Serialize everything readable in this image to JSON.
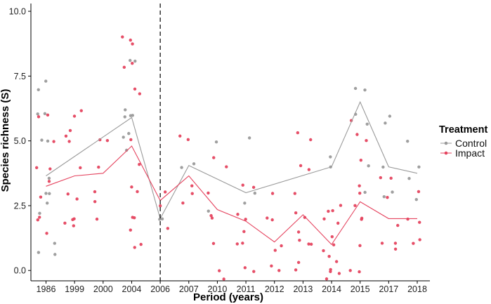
{
  "chart_data": {
    "type": "line",
    "xlabel": "Period (years)",
    "ylabel": "Species richness (S)",
    "ylim": [
      -0.4,
      10.3
    ],
    "yticks": [
      "0.0",
      "2.5",
      "5.0",
      "7.5",
      "10.0"
    ],
    "categories": [
      "1986",
      "1999",
      "2000",
      "2004",
      "2006",
      "2007",
      "2010",
      "2011",
      "2012",
      "2013",
      "2014",
      "2015",
      "2017",
      "2018"
    ],
    "reference_line": {
      "category": "2006",
      "style": "dashed"
    },
    "grid": false,
    "legend": {
      "title": "Treatment",
      "position": "right"
    },
    "series": [
      {
        "name": "Control",
        "color": "#9a9a9a",
        "mean": [
          3.65,
          null,
          null,
          5.9,
          2.0,
          4.05,
          null,
          3.0,
          null,
          null,
          4.0,
          6.5,
          4.0,
          3.75
        ],
        "points": [
          [
            0,
            7.3
          ],
          [
            0,
            7.0
          ],
          [
            0,
            6.05
          ],
          [
            0,
            6.0
          ],
          [
            0,
            5.0
          ],
          [
            0,
            5.0
          ],
          [
            0,
            3.6
          ],
          [
            0,
            3.0
          ],
          [
            0,
            3.0
          ],
          [
            0,
            2.6
          ],
          [
            0,
            2.25
          ],
          [
            0,
            1.0
          ],
          [
            0,
            0.7
          ],
          [
            0,
            0.65
          ],
          [
            3,
            8.1
          ],
          [
            3,
            8.1
          ],
          [
            3,
            6.15
          ],
          [
            3,
            6.0
          ],
          [
            3,
            6.0
          ],
          [
            3,
            5.9
          ],
          [
            3,
            5.3
          ],
          [
            3,
            5.1
          ],
          [
            3,
            4.6
          ],
          [
            4,
            2.0
          ],
          [
            4,
            2.0
          ],
          [
            5,
            4.1
          ],
          [
            5,
            4.0
          ],
          [
            6,
            5.0
          ],
          [
            6,
            2.3
          ],
          [
            7,
            5.1
          ],
          [
            7,
            3.0
          ],
          [
            7,
            2.6
          ],
          [
            10,
            4.35
          ],
          [
            10,
            4.0
          ],
          [
            11,
            7.05
          ],
          [
            11,
            7.0
          ],
          [
            11,
            6.0
          ],
          [
            11,
            5.6
          ],
          [
            11,
            4.0
          ],
          [
            11,
            3.0
          ],
          [
            12,
            6.0
          ],
          [
            12,
            5.7
          ],
          [
            12,
            4.0
          ],
          [
            12,
            3.0
          ],
          [
            12,
            2.8
          ],
          [
            13,
            5.0
          ],
          [
            13,
            4.0
          ],
          [
            13,
            3.5
          ],
          [
            13,
            2.7
          ]
        ]
      },
      {
        "name": "Impact",
        "color": "#e5445f",
        "mean": [
          3.25,
          3.65,
          3.75,
          4.8,
          2.7,
          3.65,
          2.35,
          1.9,
          1.1,
          2.15,
          1.0,
          2.65,
          2.0,
          2.0
        ],
        "points": [
          [
            0,
            6.0
          ],
          [
            0,
            5.9
          ],
          [
            0,
            5.0
          ],
          [
            0,
            4.0
          ],
          [
            0,
            3.9
          ],
          [
            0,
            3.4
          ],
          [
            0,
            2.8
          ],
          [
            0,
            2.1
          ],
          [
            0,
            2.0
          ],
          [
            0,
            1.4
          ],
          [
            1,
            6.2
          ],
          [
            1,
            6.0
          ],
          [
            1,
            5.4
          ],
          [
            1,
            5.2
          ],
          [
            1,
            5.0
          ],
          [
            1,
            4.0
          ],
          [
            1,
            3.0
          ],
          [
            1,
            2.8
          ],
          [
            1,
            2.0
          ],
          [
            1,
            2.0
          ],
          [
            1,
            1.8
          ],
          [
            1,
            1.7
          ],
          [
            2,
            5.0
          ],
          [
            2,
            5.0
          ],
          [
            2,
            4.0
          ],
          [
            2,
            3.0
          ],
          [
            2,
            2.7
          ],
          [
            2,
            2.0
          ],
          [
            3,
            9.0
          ],
          [
            3,
            8.9
          ],
          [
            3,
            8.7
          ],
          [
            3,
            8.0
          ],
          [
            3,
            7.8
          ],
          [
            3,
            7.0
          ],
          [
            3,
            6.8
          ],
          [
            3,
            5.0
          ],
          [
            3,
            4.1
          ],
          [
            3,
            3.2
          ],
          [
            3,
            3.0
          ],
          [
            3,
            2.0
          ],
          [
            3,
            2.0
          ],
          [
            3,
            1.6
          ],
          [
            3,
            1.0
          ],
          [
            3,
            0.9
          ],
          [
            4,
            3.0
          ],
          [
            4,
            2.5
          ],
          [
            4,
            1.6
          ],
          [
            5,
            5.2
          ],
          [
            5,
            5.0
          ],
          [
            5,
            3.3
          ],
          [
            5,
            3.0
          ],
          [
            5,
            2.6
          ],
          [
            6,
            4.4
          ],
          [
            6,
            4.0
          ],
          [
            6,
            3.0
          ],
          [
            6,
            2.1
          ],
          [
            6,
            2.0
          ],
          [
            6,
            1.0
          ],
          [
            6,
            0.0
          ],
          [
            6,
            -0.3
          ],
          [
            7,
            3.3
          ],
          [
            7,
            3.2
          ],
          [
            7,
            2.2
          ],
          [
            7,
            2.0
          ],
          [
            7,
            1.5
          ],
          [
            7,
            1.1
          ],
          [
            7,
            1.0
          ],
          [
            7,
            0.1
          ],
          [
            7,
            0.0
          ],
          [
            8,
            3.0
          ],
          [
            8,
            2.0
          ],
          [
            8,
            2.0
          ],
          [
            8,
            1.0
          ],
          [
            8,
            0.8
          ],
          [
            8,
            0.2
          ],
          [
            8,
            0.0
          ],
          [
            9,
            5.3
          ],
          [
            9,
            5.0
          ],
          [
            9,
            4.0
          ],
          [
            9,
            3.9
          ],
          [
            9,
            3.0
          ],
          [
            9,
            2.2
          ],
          [
            9,
            2.0
          ],
          [
            9,
            1.5
          ],
          [
            9,
            1.2
          ],
          [
            9,
            1.0
          ],
          [
            9,
            1.0
          ],
          [
            9,
            0.3
          ],
          [
            9,
            0.0
          ],
          [
            10,
            2.5
          ],
          [
            10,
            2.3
          ],
          [
            10,
            2.3
          ],
          [
            10,
            2.0
          ],
          [
            10,
            1.8
          ],
          [
            10,
            1.3
          ],
          [
            10,
            1.0
          ],
          [
            10,
            0.8
          ],
          [
            10,
            0.5
          ],
          [
            10,
            0.3
          ],
          [
            10,
            0.0
          ],
          [
            10,
            0.0
          ],
          [
            10,
            -0.1
          ],
          [
            10,
            -0.3
          ],
          [
            11,
            5.8
          ],
          [
            11,
            5.2
          ],
          [
            11,
            5.0
          ],
          [
            11,
            4.3
          ],
          [
            11,
            3.3
          ],
          [
            11,
            3.0
          ],
          [
            11,
            2.5
          ],
          [
            11,
            2.0
          ],
          [
            11,
            2.0
          ],
          [
            11,
            1.0
          ],
          [
            11,
            0.0
          ],
          [
            11,
            0.0
          ],
          [
            12,
            3.6
          ],
          [
            12,
            3.6
          ],
          [
            12,
            2.8
          ],
          [
            12,
            1.7
          ],
          [
            12,
            1.1
          ],
          [
            12,
            1.0
          ],
          [
            12,
            0.8
          ],
          [
            13,
            3.0
          ],
          [
            13,
            2.0
          ],
          [
            13,
            1.9
          ],
          [
            13,
            1.2
          ],
          [
            13,
            1.0
          ]
        ]
      }
    ]
  }
}
